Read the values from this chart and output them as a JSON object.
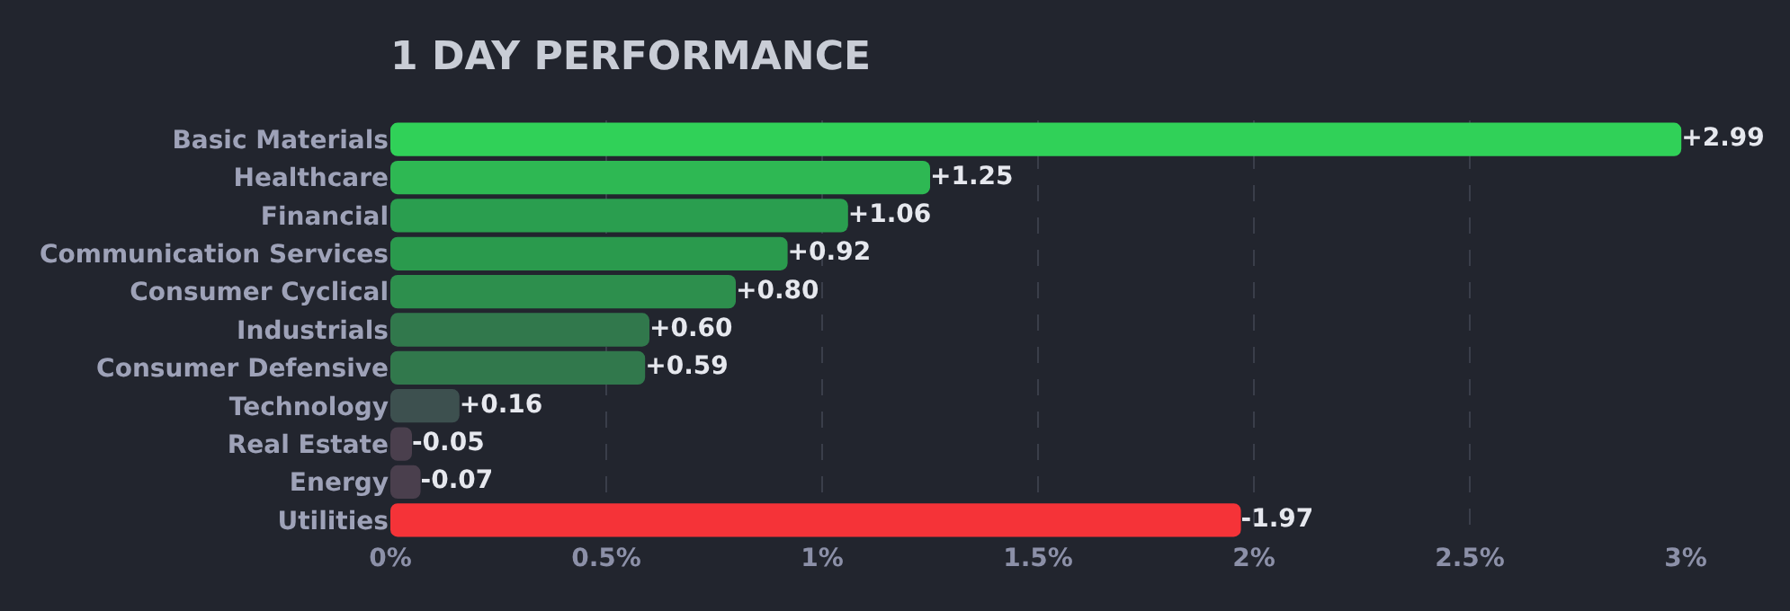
{
  "chart_data": {
    "type": "bar",
    "orientation": "horizontal",
    "title": "1 DAY PERFORMANCE",
    "categories": [
      "Basic Materials",
      "Healthcare",
      "Financial",
      "Communication Services",
      "Consumer Cyclical",
      "Industrials",
      "Consumer Defensive",
      "Technology",
      "Real Estate",
      "Energy",
      "Utilities"
    ],
    "values": [
      2.99,
      1.25,
      1.06,
      0.92,
      0.8,
      0.6,
      0.59,
      0.16,
      -0.05,
      -0.07,
      -1.97
    ],
    "base": [
      0,
      0,
      0,
      0,
      0,
      0,
      0,
      0,
      0.05,
      0.07,
      1.97
    ],
    "value_labels": [
      "+2.99",
      "+1.25",
      "+1.06",
      "+0.92",
      "+0.80",
      "+0.60",
      "+0.59",
      "+0.16",
      "-0.05",
      "-0.07",
      "-1.97"
    ],
    "colors": [
      "#30d158",
      "#2eb853",
      "#2a9e4f",
      "#2a9a4d",
      "#2d8f4d",
      "#31784c",
      "#31784c",
      "#3d504f",
      "#4a3f4d",
      "#4a3f4d",
      "#f53338"
    ],
    "xlim": [
      0,
      3
    ],
    "xticks": [
      {
        "value": 0,
        "label": "0%"
      },
      {
        "value": 0.5,
        "label": "0.5%"
      },
      {
        "value": 1,
        "label": "1%"
      },
      {
        "value": 1.5,
        "label": "1.5%"
      },
      {
        "value": 2,
        "label": "2%"
      },
      {
        "value": 2.5,
        "label": "2.5%"
      },
      {
        "value": 3,
        "label": "3%"
      }
    ],
    "grid": "x",
    "legend": false
  }
}
